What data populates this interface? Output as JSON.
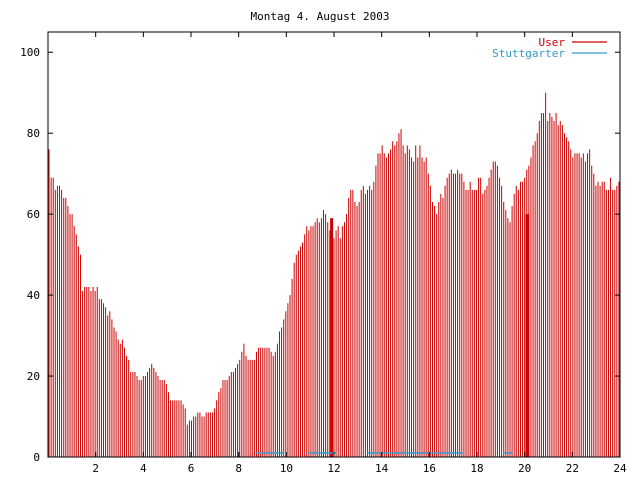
{
  "chart_data": {
    "type": "bar",
    "title": "Montag 4. August 2003",
    "xlabel": "",
    "ylabel": "",
    "xlim": [
      0,
      24
    ],
    "ylim": [
      0,
      105
    ],
    "xticks": [
      2,
      4,
      6,
      8,
      10,
      12,
      14,
      16,
      18,
      20,
      22,
      24
    ],
    "yticks": [
      0,
      20,
      40,
      60,
      80,
      100
    ],
    "legend_position": "top-right",
    "series": [
      {
        "name": "User",
        "color": "#cc0000",
        "values": [
          76,
          69,
          69,
          66,
          67,
          67,
          66,
          64,
          64,
          62,
          60,
          60,
          57,
          55,
          52,
          50,
          41,
          42,
          42,
          42,
          41,
          42,
          41,
          42,
          39,
          39,
          38,
          37,
          35,
          36,
          34,
          32,
          31,
          29,
          28,
          29,
          27,
          25,
          24,
          21,
          21,
          21,
          20,
          19,
          19,
          20,
          20,
          21,
          22,
          23,
          22,
          21,
          20,
          19,
          19,
          19,
          18,
          16,
          14,
          14,
          14,
          14,
          14,
          14,
          13,
          12,
          8,
          9,
          9,
          10,
          10,
          11,
          11,
          10,
          10,
          11,
          11,
          11,
          11,
          12,
          14,
          16,
          17,
          19,
          19,
          19,
          20,
          21,
          21,
          22,
          23,
          24,
          26,
          28,
          25,
          24,
          24,
          24,
          24,
          26,
          27,
          27,
          27,
          27,
          27,
          27,
          26,
          25,
          26,
          28,
          31,
          32,
          34,
          36,
          38,
          40,
          44,
          48,
          50,
          51,
          52,
          53,
          55,
          57,
          56,
          57,
          57,
          58,
          59,
          58,
          59,
          61,
          60,
          58,
          56,
          57,
          54,
          56,
          57,
          54,
          57,
          58,
          60,
          64,
          66,
          66,
          63,
          62,
          63,
          66,
          67,
          65,
          66,
          67,
          66,
          68,
          72,
          75,
          75,
          77,
          75,
          74,
          75,
          76,
          78,
          77,
          78,
          80,
          81,
          77,
          75,
          77,
          76,
          74,
          73,
          77,
          74,
          77,
          74,
          73,
          74,
          70,
          67,
          63,
          62,
          60,
          63,
          65,
          64,
          67,
          69,
          70,
          71,
          70,
          70,
          71,
          70,
          70,
          68,
          66,
          66,
          68,
          66,
          66,
          66,
          69,
          69,
          65,
          66,
          67,
          69,
          71,
          73,
          73,
          72,
          69,
          67,
          63,
          61,
          59,
          58,
          62,
          65,
          67,
          66,
          68,
          68,
          69,
          71,
          72,
          74,
          77,
          78,
          80,
          83,
          85,
          85,
          90,
          83,
          85,
          84,
          83,
          85,
          82,
          83,
          82,
          80,
          79,
          78,
          76,
          74,
          75,
          75,
          75,
          74,
          75,
          73,
          75,
          76,
          72,
          70,
          67,
          68,
          67,
          68,
          68,
          66,
          66,
          69,
          66,
          66,
          67,
          68
        ]
      },
      {
        "name": "Stuttgarter",
        "color": "#3399cc",
        "segments": [
          [
            8.7,
            9.9,
            1
          ],
          [
            10.9,
            12.1,
            1
          ],
          [
            13.4,
            17.4,
            1
          ],
          [
            19.1,
            19.5,
            1
          ]
        ]
      }
    ],
    "highlights": [
      [
        11.9,
        59
      ],
      [
        20.1,
        60
      ]
    ]
  }
}
